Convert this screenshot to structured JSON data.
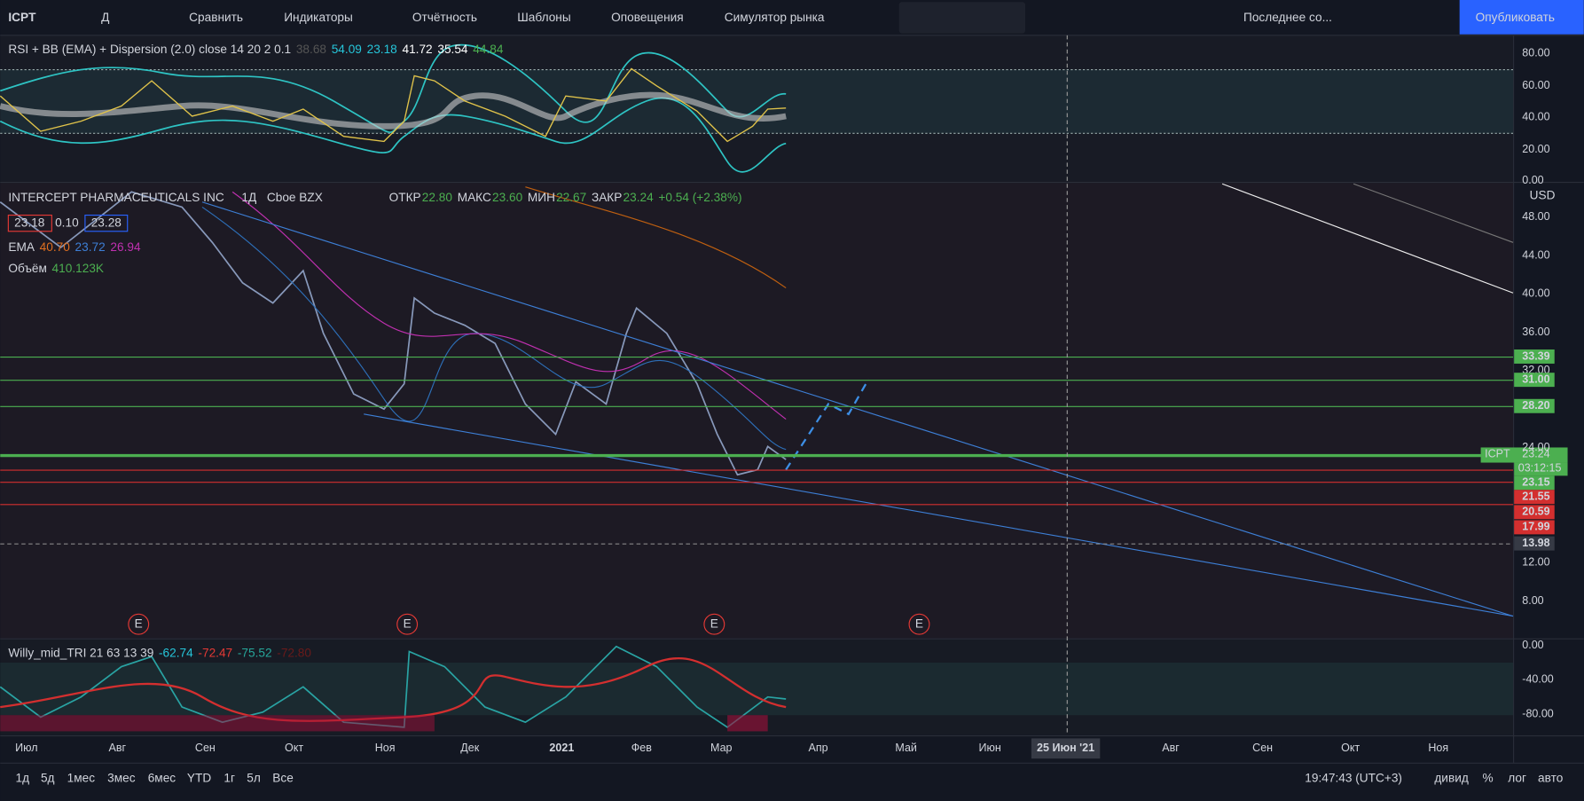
{
  "toolbar": {
    "symbol": "ICPT",
    "interval": "Д",
    "compare": "Сравнить",
    "indicators": "Индикаторы",
    "financials": "Отчётность",
    "templates": "Шаблоны",
    "alerts": "Оповещения",
    "replay": "Симулятор рынка",
    "layout": "Последнее со...",
    "publish": "Опубликовать"
  },
  "rsi_pane": {
    "title": "RSI + BB (EMA) + Dispersion (2.0) close 14 20 2 0.1",
    "values": [
      "38.68",
      "54.09",
      "23.18",
      "41.72",
      "35.54",
      "44.84"
    ],
    "axis": [
      "80.00",
      "60.00",
      "40.00",
      "20.00",
      "0.00"
    ]
  },
  "main_pane": {
    "name": "INTERCEPT PHARMACEUTICALS INC",
    "interval": "1Д",
    "exchange": "Cboe BZX",
    "ohlc": [
      "ОТКР",
      "22.80",
      "МАКС",
      "23.60",
      "МИН",
      "22.67",
      "ЗАКР",
      "23.24",
      "+0.54 (+2.38%)"
    ],
    "quote": [
      "23.18",
      "0.10",
      "23.28"
    ],
    "ema": [
      "EMA",
      "40.70",
      "23.72",
      "26.94"
    ],
    "volume": [
      "Объём",
      "410.123K"
    ],
    "currency": "USD",
    "axis": [
      "48.00",
      "44.00",
      "40.00",
      "36.00",
      "32.00",
      "24.00",
      "12.00",
      "8.00"
    ],
    "levels": [
      "33.39",
      "31.00",
      "28.20",
      "23.15",
      "21.55",
      "20.59",
      "17.99",
      "13.98"
    ],
    "last_price": {
      "symbol": "ICPT",
      "price": "23.24",
      "countdown": "03:12:15"
    },
    "earnings": [
      "E",
      "E",
      "E",
      "E"
    ]
  },
  "willy_pane": {
    "title": "Willy_mid_TRI 21 63 13 39",
    "values": [
      "-62.74",
      "-72.47",
      "-75.52",
      "-72.80"
    ],
    "axis": [
      "0.00",
      "-40.00",
      "-80.00"
    ]
  },
  "time_axis": [
    "Июл",
    "Авг",
    "Сен",
    "Окт",
    "Ноя",
    "Дек",
    "2021",
    "Фев",
    "Мар",
    "Апр",
    "Май",
    "Июн",
    "25 Июн '21",
    "Авг",
    "Сен",
    "Окт",
    "Ноя"
  ],
  "bottom_bar": {
    "ranges": [
      "1д",
      "5д",
      "1мес",
      "3мес",
      "6мес",
      "YTD",
      "1г",
      "5л",
      "Все"
    ],
    "clock": "19:47:43 (UTC+3)",
    "options": [
      "дивид",
      "%",
      "лог",
      "авто"
    ]
  }
}
